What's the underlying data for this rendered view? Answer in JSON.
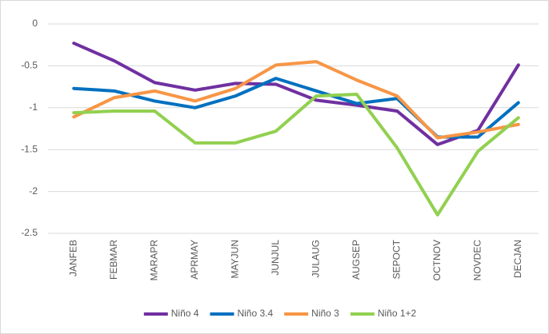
{
  "chart_data": {
    "type": "line",
    "categories": [
      "JANFEB",
      "FEBMAR",
      "MARAPR",
      "APRMAY",
      "MAYJUN",
      "JUNJUL",
      "JULAUG",
      "AUGSEP",
      "SEPOCT",
      "OCTNOV",
      "NOVDEC",
      "DECJAN"
    ],
    "series": [
      {
        "name": "Niño 4",
        "color": "#7030a0",
        "values": [
          -0.23,
          -0.44,
          -0.7,
          -0.79,
          -0.71,
          -0.72,
          -0.91,
          -0.97,
          -1.04,
          -1.44,
          -1.27,
          -0.49
        ]
      },
      {
        "name": "Niño 3.4",
        "color": "#0070c0",
        "values": [
          -0.77,
          -0.8,
          -0.92,
          -1.0,
          -0.86,
          -0.65,
          -0.8,
          -0.95,
          -0.89,
          -1.35,
          -1.35,
          -0.94
        ]
      },
      {
        "name": "Niño 3",
        "color": "#f79646",
        "values": [
          -1.11,
          -0.88,
          -0.8,
          -0.92,
          -0.77,
          -0.49,
          -0.45,
          -0.67,
          -0.86,
          -1.36,
          -1.29,
          -1.2
        ]
      },
      {
        "name": "Niño 1+2",
        "color": "#92d050",
        "values": [
          -1.06,
          -1.04,
          -1.04,
          -1.42,
          -1.42,
          -1.28,
          -0.86,
          -0.84,
          -1.48,
          -2.28,
          -1.52,
          -1.12
        ]
      }
    ],
    "ylim": [
      -2.5,
      0
    ],
    "yticks": [
      0,
      -0.5,
      -1,
      -1.5,
      -2,
      -2.5
    ],
    "grid": true,
    "legend": "bottom"
  }
}
